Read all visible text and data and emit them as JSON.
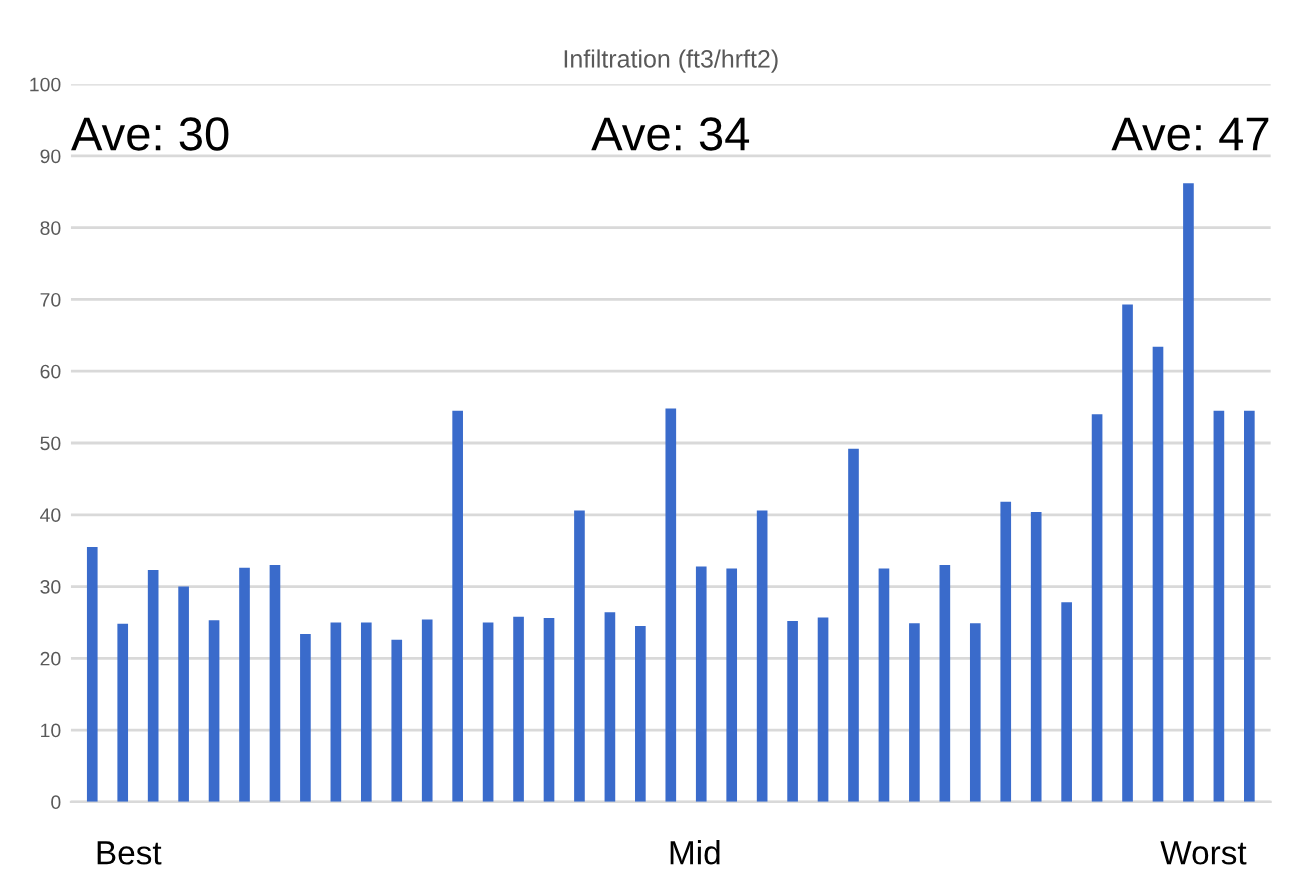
{
  "chart_data": {
    "type": "bar",
    "title": "Infiltration (ft3/hrft2)",
    "categories": [
      null,
      null,
      null,
      null,
      null,
      null,
      null,
      null,
      null,
      null,
      null,
      null,
      null,
      null,
      null,
      null,
      null,
      null,
      null,
      null,
      null,
      null,
      null,
      null,
      null,
      null,
      null,
      null,
      null,
      null,
      null,
      null,
      null,
      null,
      null,
      null,
      null,
      null,
      null
    ],
    "series": [
      {
        "color": "#3a6bcb",
        "values": [
          35.5,
          24.8,
          32.3,
          30,
          25.3,
          32.6,
          33,
          23.4,
          25,
          25,
          22.6,
          25.4,
          54.5,
          25,
          25.8,
          25.6,
          40.6,
          26.4,
          24.5,
          54.8,
          32.8,
          32.5,
          40.6,
          25.2,
          25.7,
          49.2,
          32.5,
          24.9,
          33,
          24.9,
          41.8,
          40.4,
          27.8,
          54,
          69.3,
          63.4,
          86.2,
          54.5,
          54.5
        ]
      }
    ],
    "ylim": [
      0,
      100
    ],
    "yticks": [
      0,
      10,
      20,
      30,
      40,
      50,
      60,
      70,
      80,
      90,
      100
    ],
    "grid": "y",
    "annotations": [
      "Ave: 30",
      "Ave: 34",
      "Ave: 47",
      "Best",
      "Mid",
      "Worst"
    ]
  }
}
